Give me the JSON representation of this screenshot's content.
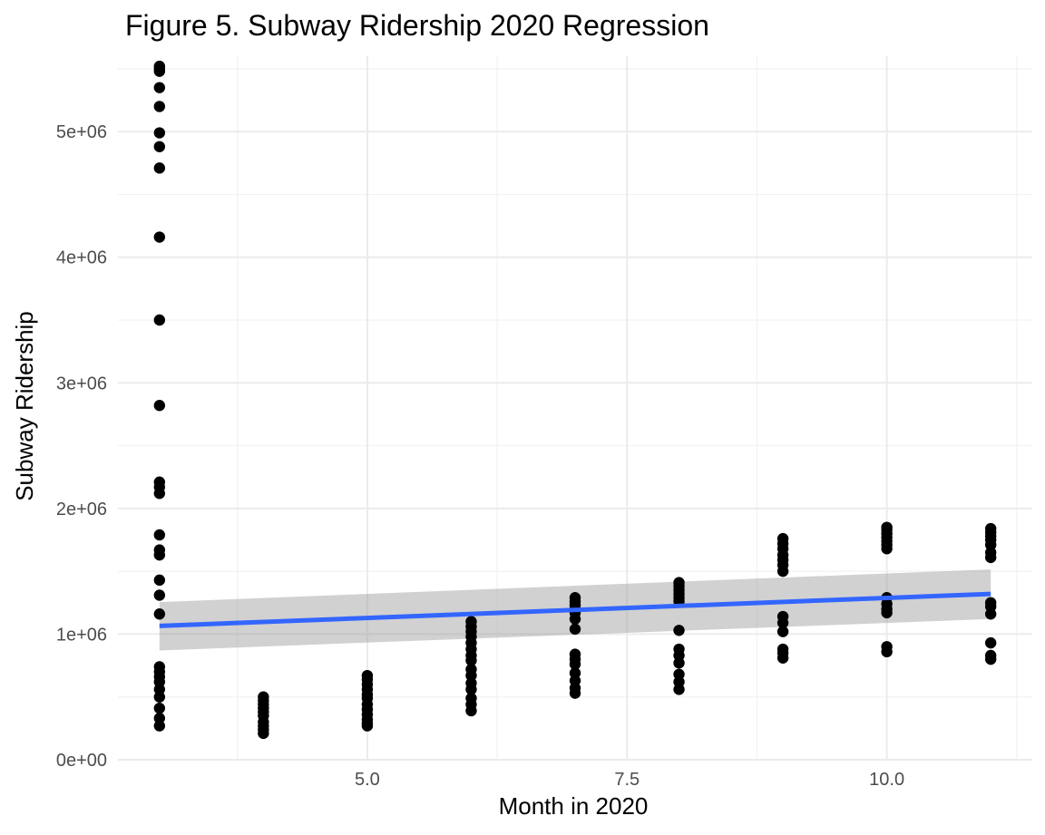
{
  "chart_data": {
    "type": "scatter",
    "title": "Figure 5. Subway Ridership 2020 Regression",
    "xlabel": "Month in 2020",
    "ylabel": "Subway Ridership",
    "xlim": [
      2.6,
      11.4
    ],
    "ylim": [
      0,
      5600000
    ],
    "x_ticks": [
      {
        "value": 5,
        "label": "5.0"
      },
      {
        "value": 7.5,
        "label": "7.5"
      },
      {
        "value": 10,
        "label": "10.0"
      }
    ],
    "y_ticks": [
      {
        "value": 0,
        "label": "0e+00"
      },
      {
        "value": 1000000,
        "label": "1e+06"
      },
      {
        "value": 2000000,
        "label": "2e+06"
      },
      {
        "value": 3000000,
        "label": "3e+06"
      },
      {
        "value": 4000000,
        "label": "4e+06"
      },
      {
        "value": 5000000,
        "label": "5e+06"
      }
    ],
    "grid": true,
    "point_color": "#000000",
    "series": [
      {
        "points": [
          [
            3,
            5520000
          ],
          [
            3,
            5500000
          ],
          [
            3,
            5480000
          ],
          [
            3,
            5350000
          ],
          [
            3,
            5200000
          ],
          [
            3,
            4990000
          ],
          [
            3,
            4880000
          ],
          [
            3,
            4710000
          ],
          [
            3,
            4160000
          ],
          [
            3,
            3500000
          ],
          [
            3,
            2820000
          ],
          [
            3,
            2210000
          ],
          [
            3,
            2170000
          ],
          [
            3,
            2120000
          ],
          [
            3,
            1790000
          ],
          [
            3,
            1670000
          ],
          [
            3,
            1630000
          ],
          [
            3,
            1430000
          ],
          [
            3,
            1310000
          ],
          [
            3,
            1160000
          ],
          [
            3,
            740000
          ],
          [
            3,
            700000
          ],
          [
            3,
            660000
          ],
          [
            3,
            620000
          ],
          [
            3,
            560000
          ],
          [
            3,
            500000
          ],
          [
            3,
            410000
          ],
          [
            3,
            330000
          ],
          [
            3,
            270000
          ],
          [
            4,
            500000
          ],
          [
            4,
            470000
          ],
          [
            4,
            440000
          ],
          [
            4,
            410000
          ],
          [
            4,
            380000
          ],
          [
            4,
            350000
          ],
          [
            4,
            300000
          ],
          [
            4,
            270000
          ],
          [
            4,
            240000
          ],
          [
            4,
            210000
          ],
          [
            5,
            670000
          ],
          [
            5,
            640000
          ],
          [
            5,
            600000
          ],
          [
            5,
            560000
          ],
          [
            5,
            520000
          ],
          [
            5,
            490000
          ],
          [
            5,
            440000
          ],
          [
            5,
            400000
          ],
          [
            5,
            360000
          ],
          [
            5,
            320000
          ],
          [
            5,
            290000
          ],
          [
            5,
            270000
          ],
          [
            6,
            1100000
          ],
          [
            6,
            1060000
          ],
          [
            6,
            1020000
          ],
          [
            6,
            980000
          ],
          [
            6,
            930000
          ],
          [
            6,
            880000
          ],
          [
            6,
            830000
          ],
          [
            6,
            790000
          ],
          [
            6,
            720000
          ],
          [
            6,
            670000
          ],
          [
            6,
            610000
          ],
          [
            6,
            560000
          ],
          [
            6,
            490000
          ],
          [
            6,
            440000
          ],
          [
            6,
            390000
          ],
          [
            7,
            1290000
          ],
          [
            7,
            1260000
          ],
          [
            7,
            1230000
          ],
          [
            7,
            1200000
          ],
          [
            7,
            1170000
          ],
          [
            7,
            1120000
          ],
          [
            7,
            1040000
          ],
          [
            7,
            840000
          ],
          [
            7,
            800000
          ],
          [
            7,
            760000
          ],
          [
            7,
            690000
          ],
          [
            7,
            630000
          ],
          [
            7,
            570000
          ],
          [
            7,
            530000
          ],
          [
            8,
            1410000
          ],
          [
            8,
            1380000
          ],
          [
            8,
            1350000
          ],
          [
            8,
            1320000
          ],
          [
            8,
            1290000
          ],
          [
            8,
            1260000
          ],
          [
            8,
            1030000
          ],
          [
            8,
            880000
          ],
          [
            8,
            830000
          ],
          [
            8,
            770000
          ],
          [
            8,
            680000
          ],
          [
            8,
            620000
          ],
          [
            8,
            560000
          ],
          [
            9,
            1760000
          ],
          [
            9,
            1720000
          ],
          [
            9,
            1680000
          ],
          [
            9,
            1630000
          ],
          [
            9,
            1590000
          ],
          [
            9,
            1550000
          ],
          [
            9,
            1500000
          ],
          [
            9,
            1140000
          ],
          [
            9,
            1090000
          ],
          [
            9,
            1020000
          ],
          [
            9,
            880000
          ],
          [
            9,
            850000
          ],
          [
            9,
            810000
          ],
          [
            10,
            1850000
          ],
          [
            10,
            1830000
          ],
          [
            10,
            1800000
          ],
          [
            10,
            1770000
          ],
          [
            10,
            1740000
          ],
          [
            10,
            1710000
          ],
          [
            10,
            1680000
          ],
          [
            10,
            1290000
          ],
          [
            10,
            1240000
          ],
          [
            10,
            1200000
          ],
          [
            10,
            1170000
          ],
          [
            10,
            900000
          ],
          [
            10,
            860000
          ],
          [
            11,
            1840000
          ],
          [
            11,
            1810000
          ],
          [
            11,
            1780000
          ],
          [
            11,
            1750000
          ],
          [
            11,
            1710000
          ],
          [
            11,
            1650000
          ],
          [
            11,
            1610000
          ],
          [
            11,
            1250000
          ],
          [
            11,
            1220000
          ],
          [
            11,
            1160000
          ],
          [
            11,
            930000
          ],
          [
            11,
            830000
          ],
          [
            11,
            800000
          ]
        ]
      }
    ],
    "regression": {
      "color": "#3366FF",
      "band_color": "#999999",
      "x": [
        3,
        11
      ],
      "y": [
        1065000,
        1320000
      ],
      "ci_lower": [
        870000,
        1120000
      ],
      "ci_upper": [
        1255000,
        1515000
      ]
    }
  }
}
